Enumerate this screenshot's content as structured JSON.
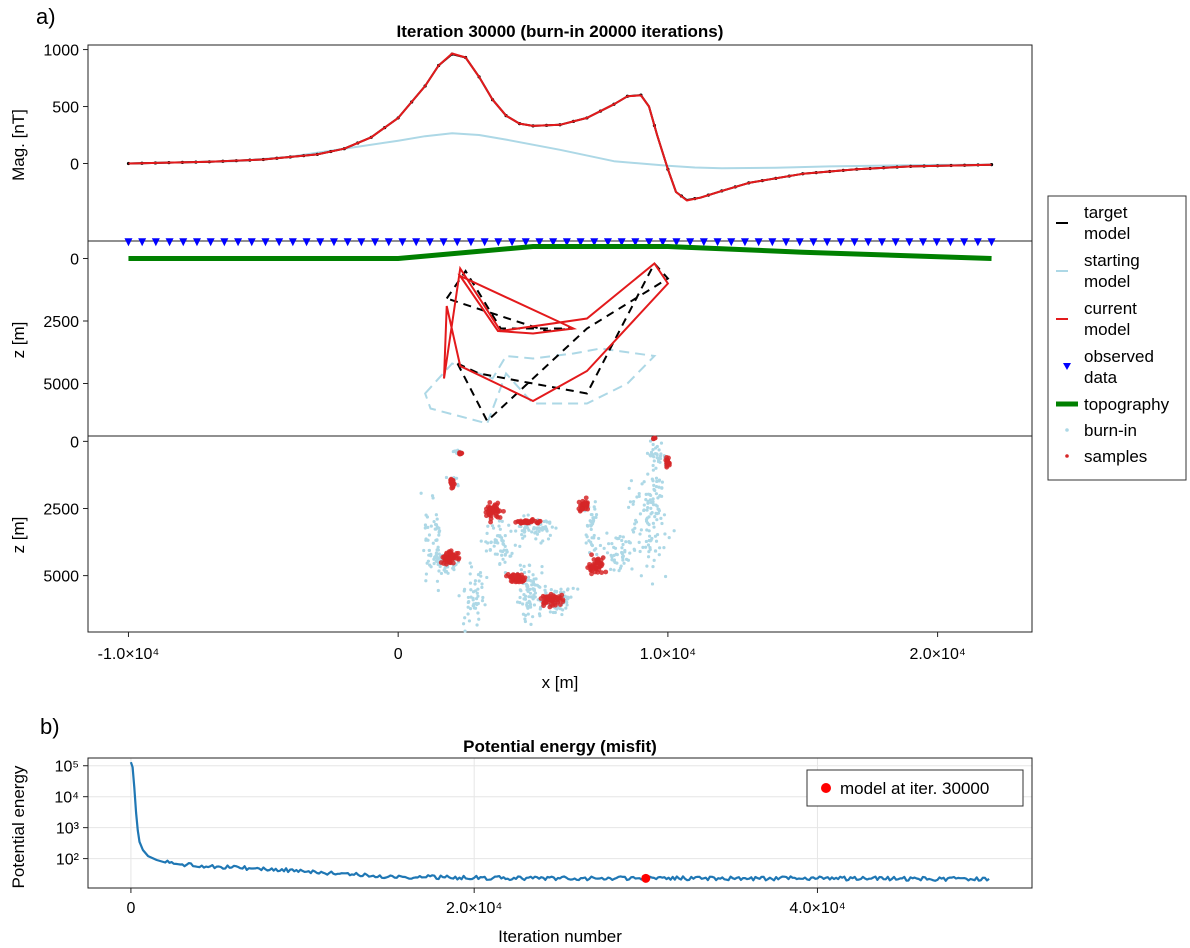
{
  "panel_labels": {
    "a": "a)",
    "b": "b)"
  },
  "chart_data": [
    {
      "type": "line",
      "title": "Iteration 30000 (burn-in 20000 iterations)",
      "ylabel": "Mag. [nT]",
      "xlim": [
        -11500,
        23500
      ],
      "ylim": [
        -680,
        1040
      ],
      "yticks": [
        {
          "v": 0,
          "label": "0"
        },
        {
          "v": 500,
          "label": "500"
        },
        {
          "v": 1000,
          "label": "1000"
        }
      ],
      "series": [
        {
          "name": "starting model",
          "color": "#add8e6",
          "x": [
            -10000,
            -6000,
            -4000,
            -2000,
            0,
            1000,
            2000,
            3000,
            4000,
            6000,
            8000,
            10000,
            11000,
            12000,
            14000,
            16000,
            18000,
            20000,
            22000
          ],
          "y": [
            0,
            20,
            60,
            130,
            200,
            240,
            265,
            250,
            210,
            120,
            20,
            -20,
            -35,
            -42,
            -38,
            -25,
            -18,
            -12,
            -10
          ]
        },
        {
          "name": "target model",
          "color": "#000000",
          "x": [
            -10000,
            -7000,
            -5000,
            -3000,
            -2000,
            -1000,
            0,
            1000,
            1500,
            2000,
            2500,
            3000,
            3500,
            4000,
            4500,
            5000,
            6000,
            7000,
            8000,
            8500,
            9000,
            9300,
            9600,
            10000,
            10300,
            10700,
            11200,
            12000,
            13000,
            15000,
            17000,
            19000,
            22000
          ],
          "y": [
            0,
            15,
            35,
            80,
            130,
            230,
            400,
            680,
            860,
            960,
            930,
            760,
            560,
            420,
            350,
            330,
            340,
            400,
            520,
            590,
            600,
            500,
            250,
            -50,
            -250,
            -320,
            -300,
            -240,
            -170,
            -90,
            -50,
            -25,
            -10
          ]
        },
        {
          "name": "current model",
          "color": "#e31a1c",
          "x": [
            -10000,
            -7000,
            -5000,
            -3000,
            -2000,
            -1000,
            0,
            1000,
            1500,
            2000,
            2500,
            3000,
            3500,
            4000,
            4500,
            5000,
            6000,
            7000,
            8000,
            8500,
            9000,
            9300,
            9600,
            10000,
            10300,
            10700,
            11200,
            12000,
            13000,
            15000,
            17000,
            19000,
            22000
          ],
          "y": [
            0,
            15,
            35,
            80,
            130,
            230,
            400,
            680,
            860,
            965,
            930,
            760,
            560,
            420,
            350,
            330,
            340,
            400,
            520,
            590,
            598,
            500,
            250,
            -50,
            -250,
            -325,
            -300,
            -240,
            -170,
            -90,
            -50,
            -25,
            -10
          ]
        }
      ]
    },
    {
      "type": "line",
      "ylabel": "z [m]",
      "xlim": [
        -11500,
        23500
      ],
      "ylim": [
        7100,
        -700
      ],
      "yticks": [
        {
          "v": 0,
          "label": "0"
        },
        {
          "v": 2500,
          "label": "2500"
        },
        {
          "v": 5000,
          "label": "5000"
        }
      ],
      "observed_data": {
        "name": "observed data",
        "color": "#0000ff",
        "x_start": -10000,
        "x_end": 22000,
        "count": 64,
        "z": -650
      },
      "topography": {
        "name": "topography",
        "color": "#008000",
        "x": [
          -10000,
          0,
          5000,
          10000,
          15000,
          22000
        ],
        "z": [
          0,
          0,
          -480,
          -480,
          -250,
          0
        ]
      },
      "starting_model": {
        "name": "starting model",
        "color": "#add8e6",
        "polygons": [
          {
            "x": [
              1000,
              2000,
              3500,
              4000,
              5000,
              6500,
              7500,
              9500,
              8500,
              7000,
              5000,
              4000,
              3300,
              1200
            ],
            "z": [
              5400,
              4200,
              4800,
              3900,
              4000,
              3800,
              3600,
              3900,
              5000,
              5800,
              5800,
              4600,
              6600,
              6000
            ]
          }
        ]
      },
      "target_model": {
        "name": "target model",
        "color": "#000000",
        "polygons": [
          {
            "x": [
              1800,
              2500,
              3800,
              6500,
              5500
            ],
            "z": [
              1600,
              500,
              2800,
              2800,
              2900
            ]
          },
          {
            "x": [
              2200,
              3000,
              4500,
              7000,
              9500,
              10000,
              7000,
              3300
            ],
            "z": [
              4200,
              4600,
              4900,
              5400,
              200,
              800,
              2800,
              6500
            ]
          }
        ]
      },
      "current_model": {
        "name": "current model",
        "color": "#e31a1c",
        "polygons": [
          {
            "x": [
              1700,
              2300,
              3800,
              7000,
              9500,
              10000,
              7000,
              5000,
              2300,
              1800
            ],
            "z": [
              4800,
              400,
              2900,
              2400,
              200,
              1000,
              4500,
              5700,
              4300,
              1900
            ]
          },
          {
            "x": [
              2300,
              3700,
              5000,
              6500
            ],
            "z": [
              700,
              2900,
              3000,
              2800
            ]
          }
        ]
      }
    },
    {
      "type": "scatter",
      "ylabel": "z [m]",
      "xlabel": "x [m]",
      "xlim": [
        -11500,
        23500
      ],
      "ylim": [
        7100,
        -200
      ],
      "yticks": [
        {
          "v": 0,
          "label": "0"
        },
        {
          "v": 2500,
          "label": "2500"
        },
        {
          "v": 5000,
          "label": "5000"
        }
      ],
      "xticks": [
        {
          "v": -10000,
          "label": "-1.0×10⁴"
        },
        {
          "v": 0,
          "label": "0"
        },
        {
          "v": 10000,
          "label": "1.0×10⁴"
        },
        {
          "v": 20000,
          "label": "2.0×10⁴"
        }
      ],
      "burn_in": {
        "name": "burn-in",
        "color": "#add8e6",
        "clusters": [
          {
            "x": 2200,
            "z": 400,
            "sx": 150,
            "sz": 80,
            "n": 15
          },
          {
            "x": 2000,
            "z": 1500,
            "sx": 150,
            "sz": 200,
            "n": 20
          },
          {
            "x": 1300,
            "z": 3800,
            "sx": 300,
            "sz": 1200,
            "n": 60
          },
          {
            "x": 1800,
            "z": 4500,
            "sx": 350,
            "sz": 300,
            "n": 50
          },
          {
            "x": 2800,
            "z": 5800,
            "sx": 350,
            "sz": 900,
            "n": 50
          },
          {
            "x": 3800,
            "z": 3800,
            "sx": 500,
            "sz": 700,
            "n": 60
          },
          {
            "x": 5000,
            "z": 3200,
            "sx": 600,
            "sz": 400,
            "n": 60
          },
          {
            "x": 4900,
            "z": 5600,
            "sx": 400,
            "sz": 800,
            "n": 90
          },
          {
            "x": 6000,
            "z": 5900,
            "sx": 400,
            "sz": 500,
            "n": 60
          },
          {
            "x": 7200,
            "z": 3200,
            "sx": 200,
            "sz": 800,
            "n": 40
          },
          {
            "x": 8200,
            "z": 4200,
            "sx": 500,
            "sz": 600,
            "n": 50
          },
          {
            "x": 9300,
            "z": 2800,
            "sx": 600,
            "sz": 1600,
            "n": 120
          },
          {
            "x": 9600,
            "z": 500,
            "sx": 300,
            "sz": 400,
            "n": 30
          }
        ]
      },
      "samples": {
        "name": "samples",
        "color": "#d62728",
        "clusters": [
          {
            "x": 2300,
            "z": 450,
            "sx": 60,
            "sz": 40,
            "n": 8
          },
          {
            "x": 2000,
            "z": 1550,
            "sx": 60,
            "sz": 150,
            "n": 25
          },
          {
            "x": 3500,
            "z": 2600,
            "sx": 250,
            "sz": 250,
            "n": 45
          },
          {
            "x": 4800,
            "z": 3000,
            "sx": 350,
            "sz": 60,
            "n": 40
          },
          {
            "x": 6900,
            "z": 2400,
            "sx": 150,
            "sz": 180,
            "n": 30
          },
          {
            "x": 1900,
            "z": 4300,
            "sx": 250,
            "sz": 200,
            "n": 60
          },
          {
            "x": 4400,
            "z": 5100,
            "sx": 250,
            "sz": 120,
            "n": 45
          },
          {
            "x": 5700,
            "z": 5900,
            "sx": 350,
            "sz": 200,
            "n": 50
          },
          {
            "x": 7400,
            "z": 4600,
            "sx": 300,
            "sz": 250,
            "n": 40
          },
          {
            "x": 9500,
            "z": -100,
            "sx": 50,
            "sz": 40,
            "n": 5
          },
          {
            "x": 10000,
            "z": 800,
            "sx": 60,
            "sz": 150,
            "n": 20
          }
        ]
      }
    },
    {
      "type": "line",
      "title": "Potential energy (misfit)",
      "xlabel": "Iteration number",
      "ylabel": "Potential energy",
      "log_y": true,
      "xlim": [
        -2500,
        52500
      ],
      "ylim_log10": [
        1.05,
        5.25
      ],
      "grid": true,
      "yticks": [
        {
          "v": 2,
          "label": "10²"
        },
        {
          "v": 3,
          "label": "10³"
        },
        {
          "v": 4,
          "label": "10⁴"
        },
        {
          "v": 5,
          "label": "10⁵"
        }
      ],
      "xticks": [
        {
          "v": 0,
          "label": "0"
        },
        {
          "v": 20000,
          "label": "2.0×10⁴"
        },
        {
          "v": 40000,
          "label": "4.0×10⁴"
        }
      ],
      "series": [
        {
          "name": "misfit",
          "color": "#1f77b4",
          "x": [
            0,
            100,
            200,
            300,
            400,
            500,
            700,
            1000,
            1500,
            2000,
            3000,
            5000,
            7000,
            10000,
            13000,
            15000,
            20000,
            25000,
            30000,
            40000,
            50000
          ],
          "y": [
            130000,
            90000,
            20000,
            3000,
            800,
            350,
            190,
            120,
            90,
            75,
            65,
            55,
            48,
            40,
            30,
            26,
            24,
            23,
            23,
            23,
            22
          ]
        }
      ],
      "marker": {
        "label": "model at iter. 30000",
        "x": 30000,
        "y": 23,
        "color": "#ff0000"
      }
    }
  ],
  "legend": {
    "items": [
      {
        "label": [
          "target",
          "model"
        ],
        "kind": "line",
        "color": "#000000"
      },
      {
        "label": [
          "starting",
          "model"
        ],
        "kind": "line",
        "color": "#add8e6"
      },
      {
        "label": [
          "current",
          "model"
        ],
        "kind": "line",
        "color": "#e31a1c"
      },
      {
        "label": [
          "observed",
          "data"
        ],
        "kind": "triangle",
        "color": "#0000ff"
      },
      {
        "label": [
          "topography"
        ],
        "kind": "thick",
        "color": "#008000"
      },
      {
        "label": [
          "burn-in"
        ],
        "kind": "dot",
        "color": "#add8e6"
      },
      {
        "label": [
          "samples"
        ],
        "kind": "dot",
        "color": "#d62728"
      }
    ]
  }
}
